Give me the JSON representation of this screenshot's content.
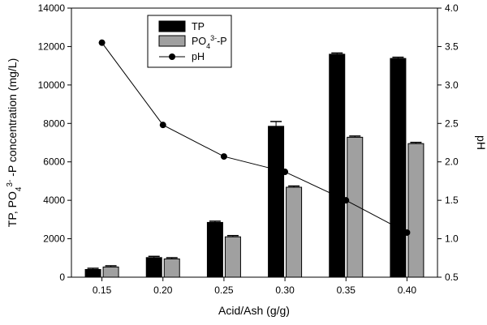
{
  "chart_data": {
    "type": "bar",
    "categories": [
      "0.15",
      "0.20",
      "0.25",
      "0.30",
      "0.35",
      "0.40"
    ],
    "xlabel": "Acid/Ash (g/g)",
    "ylabel_left": {
      "pre": "TP, PO",
      "sub": "4",
      "sup": "3-",
      "post": " -P concentration (mg/L)"
    },
    "ylabel_right": "pH",
    "ylim_left": [
      0,
      14000
    ],
    "yticks_left": [
      0,
      2000,
      4000,
      6000,
      8000,
      10000,
      12000,
      14000
    ],
    "ylim_right": [
      0.5,
      4.0
    ],
    "yticks_right": [
      "0.5",
      "1.0",
      "1.5",
      "2.0",
      "2.5",
      "3.0",
      "3.5",
      "4.0"
    ],
    "grid": false,
    "legend_position": "top-left",
    "series": [
      {
        "name": "TP",
        "kind": "bar",
        "axis": "left",
        "color": "#000000",
        "values": [
          400,
          1020,
          2850,
          7850,
          11600,
          11380
        ],
        "errors": [
          0,
          0,
          0,
          250,
          0,
          0
        ]
      },
      {
        "name": {
          "pre": "PO",
          "sub": "4",
          "sup": "3-",
          "post": "-P"
        },
        "kind": "bar",
        "axis": "left",
        "color": "#a0a0a0",
        "values": [
          530,
          950,
          2100,
          4680,
          7280,
          6950
        ],
        "errors": [
          0,
          0,
          0,
          0,
          0,
          0
        ]
      },
      {
        "name": "pH",
        "kind": "line",
        "axis": "right",
        "color": "#000000",
        "marker": "circle",
        "values": [
          3.55,
          2.48,
          2.07,
          1.87,
          1.5,
          1.08
        ]
      }
    ]
  }
}
